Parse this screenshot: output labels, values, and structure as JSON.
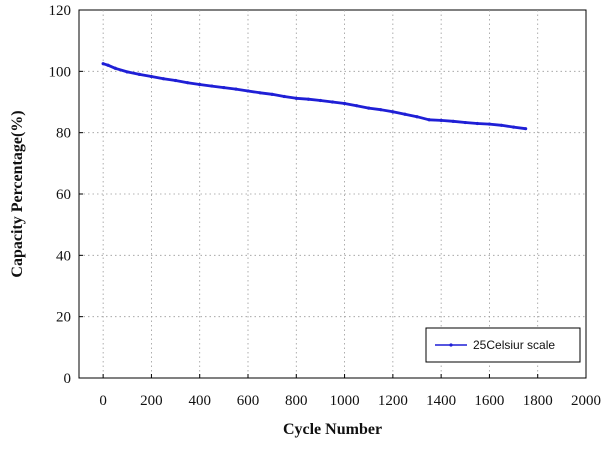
{
  "chart_data": {
    "type": "line",
    "xlabel": "Cycle Number",
    "ylabel": "Capacity Percentage(%)",
    "xlim": [
      -100,
      2000
    ],
    "ylim": [
      0,
      120
    ],
    "xticks": [
      0,
      200,
      400,
      600,
      800,
      1000,
      1200,
      1400,
      1600,
      1800,
      2000
    ],
    "yticks": [
      0,
      20,
      40,
      60,
      80,
      100,
      120
    ],
    "grid": true,
    "legend_position": "bottom-right",
    "series": [
      {
        "name": "25Celsiur scale",
        "color": "#1f1fd6",
        "x": [
          0,
          20,
          50,
          100,
          150,
          200,
          250,
          300,
          350,
          400,
          450,
          500,
          550,
          600,
          650,
          700,
          750,
          800,
          850,
          900,
          950,
          1000,
          1050,
          1100,
          1150,
          1200,
          1250,
          1300,
          1350,
          1400,
          1450,
          1500,
          1550,
          1600,
          1650,
          1700,
          1750
        ],
        "y": [
          102.5,
          102,
          101,
          99.8,
          99,
          98.3,
          97.6,
          97,
          96.3,
          95.7,
          95.2,
          94.7,
          94.2,
          93.6,
          93,
          92.5,
          91.8,
          91.2,
          90.9,
          90.5,
          90,
          89.5,
          88.8,
          88,
          87.5,
          86.8,
          86,
          85.2,
          84.2,
          84,
          83.7,
          83.3,
          83,
          82.8,
          82.4,
          81.8,
          81.3
        ]
      }
    ]
  }
}
